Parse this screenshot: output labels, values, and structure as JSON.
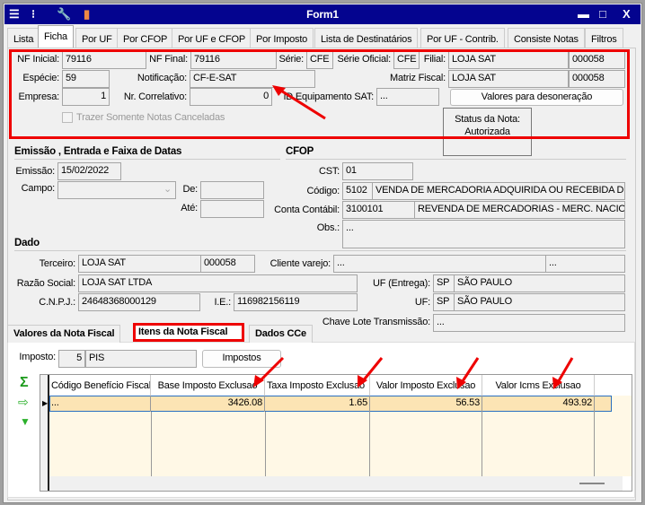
{
  "window": {
    "title": "Form1",
    "icons": [
      "menu-icon",
      "traffic-light-icon",
      "wrench-icon",
      "book-icon"
    ],
    "controls": [
      "minimize",
      "maximize",
      "close"
    ]
  },
  "tabs": [
    "Lista",
    "Ficha",
    "Por UF",
    "Por CFOP",
    "Por UF e CFOP",
    "Por Imposto",
    "Lista de Destinatários",
    "Por UF - Contrib.",
    "Consiste Notas",
    "Filtros"
  ],
  "header": {
    "nf_inicial_label": "NF Inicial:",
    "nf_inicial": "79116",
    "nf_final_label": "NF Final:",
    "nf_final": "79116",
    "serie_label": "Série:",
    "serie": "CFE",
    "serie_oficial_label": "Série Oficial:",
    "serie_oficial": "CFE",
    "filial_label": "Filial:",
    "filial_nome": "LOJA SAT",
    "filial_cod": "000058",
    "especie_label": "Espécie:",
    "especie": "59",
    "notificacao_label": "Notificação:",
    "notificacao": "CF-E-SAT",
    "matriz_label": "Matriz Fiscal:",
    "matriz_nome": "LOJA SAT",
    "matriz_cod": "000058",
    "empresa_label": "Empresa:",
    "empresa": "1",
    "correlativo_label": "Nr. Correlativo:",
    "correlativo": "0",
    "id_sat_label": "ID Equipamento SAT:",
    "id_sat": "...",
    "desoneracao_button": "Valores para desoneração",
    "canceladas_checkbox": "Trazer Somente Notas Canceladas",
    "status_label": "Status da Nota:",
    "status": "Autorizada"
  },
  "emissao": {
    "title": "Emissão , Entrada e Faixa de Datas",
    "emissao_label": "Emissão:",
    "emissao": "15/02/2022",
    "campo_label": "Campo:",
    "campo": "",
    "de_label": "De:",
    "de": "",
    "ate_label": "Até:",
    "ate": ""
  },
  "cfop": {
    "title": "CFOP",
    "cst_label": "CST:",
    "cst": "01",
    "codigo_label": "Código:",
    "codigo": "5102",
    "codigo_desc": "VENDA DE MERCADORIA ADQUIRIDA OU RECEBIDA DE TE",
    "conta_label": "Conta Contábil:",
    "conta": "3100101",
    "conta_desc": "REVENDA DE MERCADORIAS - MERC. NACIONAI",
    "obs_label": "Obs.:",
    "obs": "..."
  },
  "dados": {
    "title": "Dado",
    "terceiro_label": "Terceiro:",
    "terceiro": "LOJA SAT",
    "terceiro_cod": "000058",
    "cliente_label": "Cliente varejo:",
    "cliente": "...",
    "cliente_cod": "...",
    "razao_label": "Razão Social:",
    "razao": "LOJA SAT LTDA",
    "uf_entrega_label": "UF (Entrega):",
    "uf_entrega": "SP",
    "uf_entrega_nome": "SÃO PAULO",
    "cnpj_label": "C.N.P.J.:",
    "cnpj": "24648368000129",
    "ie_label": "I.E.:",
    "ie": "116982156119",
    "uf_label": "UF:",
    "uf": "SP",
    "uf_nome": "SÃO PAULO",
    "chave_label": "Chave Lote Transmissão:",
    "chave": "..."
  },
  "bottom_tabs": [
    "Valores da Nota Fiscal",
    "Itens da Nota Fiscal",
    "Dados CCe"
  ],
  "itens": {
    "imposto_label": "Imposto:",
    "imposto_cod": "5",
    "imposto_nome": "PIS",
    "impostos_button": "Impostos",
    "columns": [
      "Código Benefício Fiscal",
      "Base Imposto Exclusao",
      "Taxa Imposto Exclusao",
      "Valor Imposto Exclusao",
      "Valor Icms Exclusao"
    ],
    "rows": [
      [
        "...",
        "3426.08",
        "1.65",
        "56.53",
        "493.92"
      ]
    ]
  },
  "colors": {
    "title_bar": "#04048f",
    "highlight": "#e00000",
    "selected_row": "#fce4b4",
    "grid_bg": "#fff8e6"
  }
}
